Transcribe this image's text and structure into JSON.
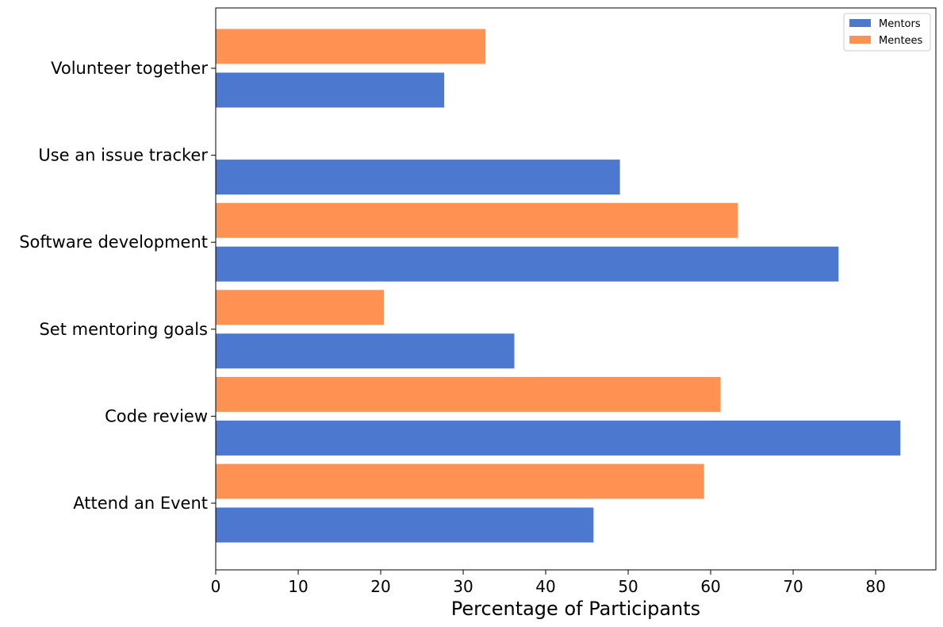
{
  "chart_data": {
    "type": "bar",
    "orientation": "horizontal",
    "categories": [
      "Attend an Event",
      "Code review",
      "Set mentoring goals",
      "Software development",
      "Use an issue tracker",
      "Volunteer together"
    ],
    "series": [
      {
        "name": "Mentors",
        "color": "#4c78d0",
        "values": [
          45.8,
          83.0,
          36.2,
          75.5,
          49.0,
          27.7
        ]
      },
      {
        "name": "Mentees",
        "color": "#ff9152",
        "values": [
          59.2,
          61.2,
          20.4,
          63.3,
          0,
          32.7
        ]
      }
    ],
    "xlabel": "Percentage of Participants",
    "ylabel": "",
    "xlim": [
      0,
      87.3
    ],
    "xticks": [
      0,
      10,
      20,
      30,
      40,
      50,
      60,
      70,
      80
    ],
    "grid": false,
    "legend": "top-right"
  }
}
